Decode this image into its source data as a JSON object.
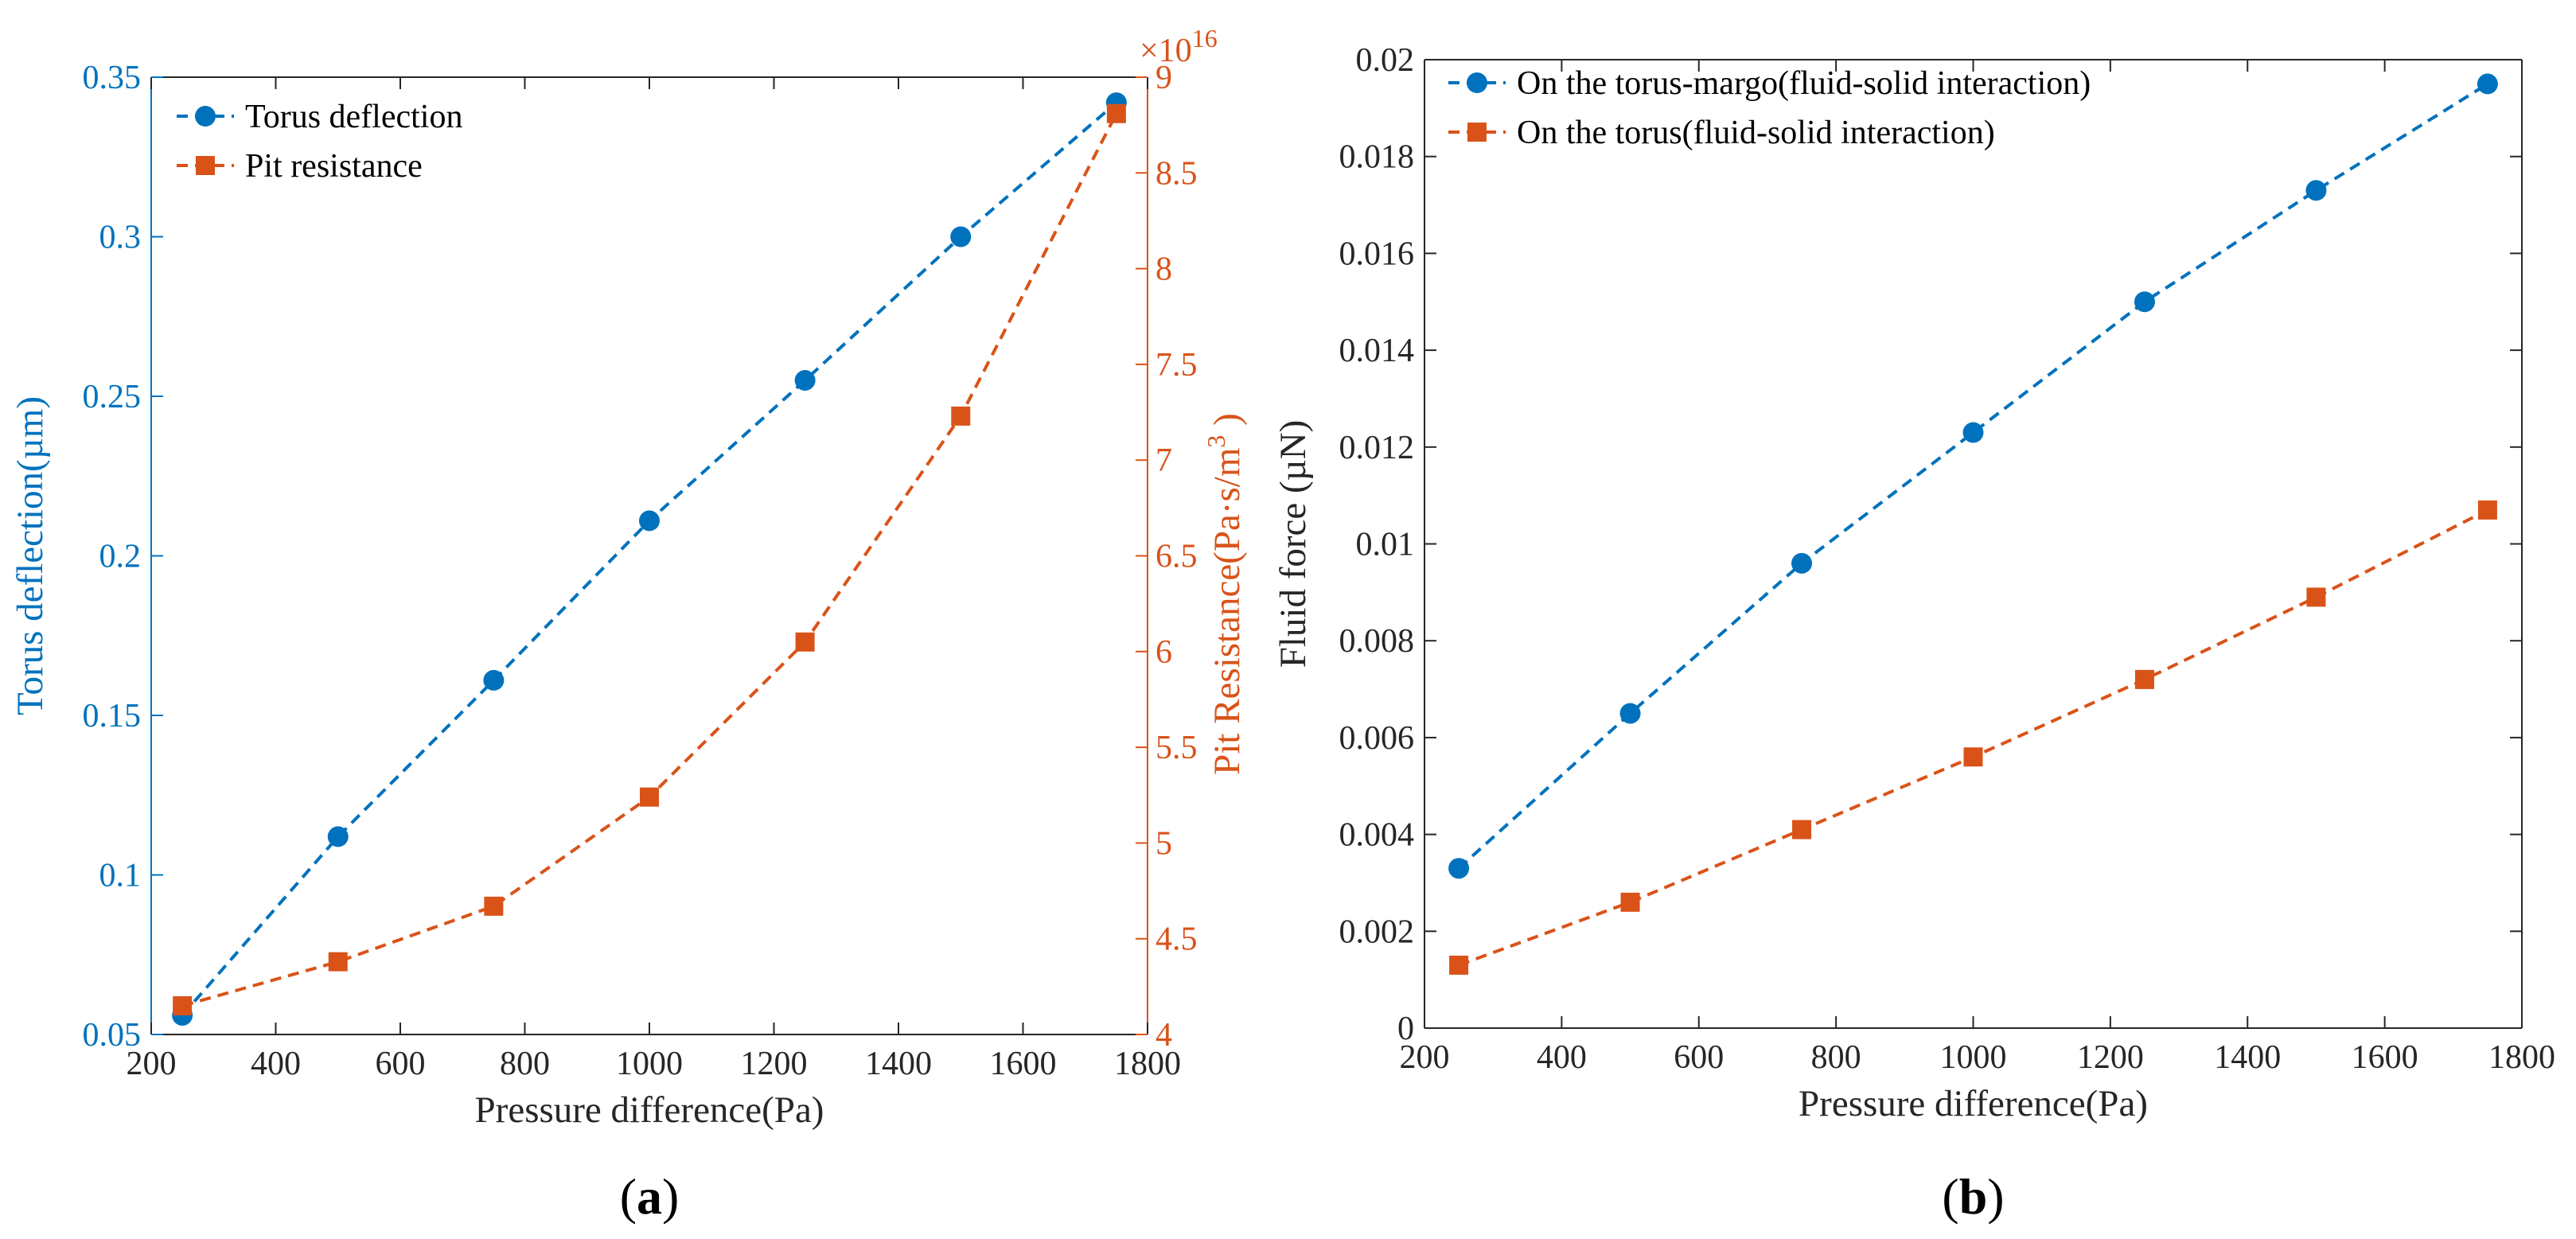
{
  "colors": {
    "blue": "#0072BD",
    "orange": "#D95319",
    "axis": "#262626"
  },
  "charts": [
    {
      "panel_label": "a",
      "type": "line",
      "x": [
        250,
        500,
        750,
        1000,
        1250,
        1500,
        1750
      ],
      "xlabel": "Pressure difference(Pa)",
      "xlim": [
        200,
        1800
      ],
      "xticks": [
        200,
        400,
        600,
        800,
        1000,
        1200,
        1400,
        1600,
        1800
      ],
      "ylabel": "Torus deflection(µm)",
      "ylim": [
        0.05,
        0.35
      ],
      "yticks": [
        "0.05",
        "0.1",
        "0.15",
        "0.2",
        "0.25",
        "0.3",
        "0.35"
      ],
      "y2label_main": "Pit Resistance(Pa·s/m",
      "y2label_sup": "3",
      "y2label_end": ")",
      "y2lim": [
        4,
        9
      ],
      "y2ticks": [
        "4",
        "4.5",
        "5",
        "5.5",
        "6",
        "6.5",
        "7",
        "7.5",
        "8",
        "8.5",
        "9"
      ],
      "y2_multiplier_base": "×10",
      "y2_multiplier_exp": "16",
      "series": [
        {
          "name": "Torus deflection",
          "axis": "left",
          "marker": "circle",
          "color": "#0072BD",
          "values": [
            0.056,
            0.112,
            0.161,
            0.211,
            0.255,
            0.3,
            0.342
          ]
        },
        {
          "name": "Pit resistance",
          "axis": "right",
          "marker": "square",
          "color": "#D95319",
          "values": [
            4.15,
            4.38,
            4.67,
            5.24,
            6.05,
            7.23,
            8.81
          ]
        }
      ]
    },
    {
      "panel_label": "b",
      "type": "line",
      "x": [
        250,
        500,
        750,
        1000,
        1250,
        1500,
        1750
      ],
      "xlabel": "Pressure difference(Pa)",
      "xlim": [
        200,
        1800
      ],
      "xticks": [
        200,
        400,
        600,
        800,
        1000,
        1200,
        1400,
        1600,
        1800
      ],
      "ylabel": "Fluid force (µN)",
      "ylim": [
        0,
        0.02
      ],
      "yticks": [
        "0",
        "0.002",
        "0.004",
        "0.006",
        "0.008",
        "0.01",
        "0.012",
        "0.014",
        "0.016",
        "0.018",
        "0.02"
      ],
      "series": [
        {
          "name": "On the torus-margo(fluid-solid interaction)",
          "marker": "circle",
          "color": "#0072BD",
          "values": [
            0.0033,
            0.0065,
            0.0096,
            0.0123,
            0.015,
            0.0173,
            0.0195
          ]
        },
        {
          "name": "On the torus(fluid-solid interaction)",
          "marker": "square",
          "color": "#D95319",
          "values": [
            0.0013,
            0.0026,
            0.0041,
            0.0056,
            0.0072,
            0.0089,
            0.0107
          ]
        }
      ]
    }
  ]
}
